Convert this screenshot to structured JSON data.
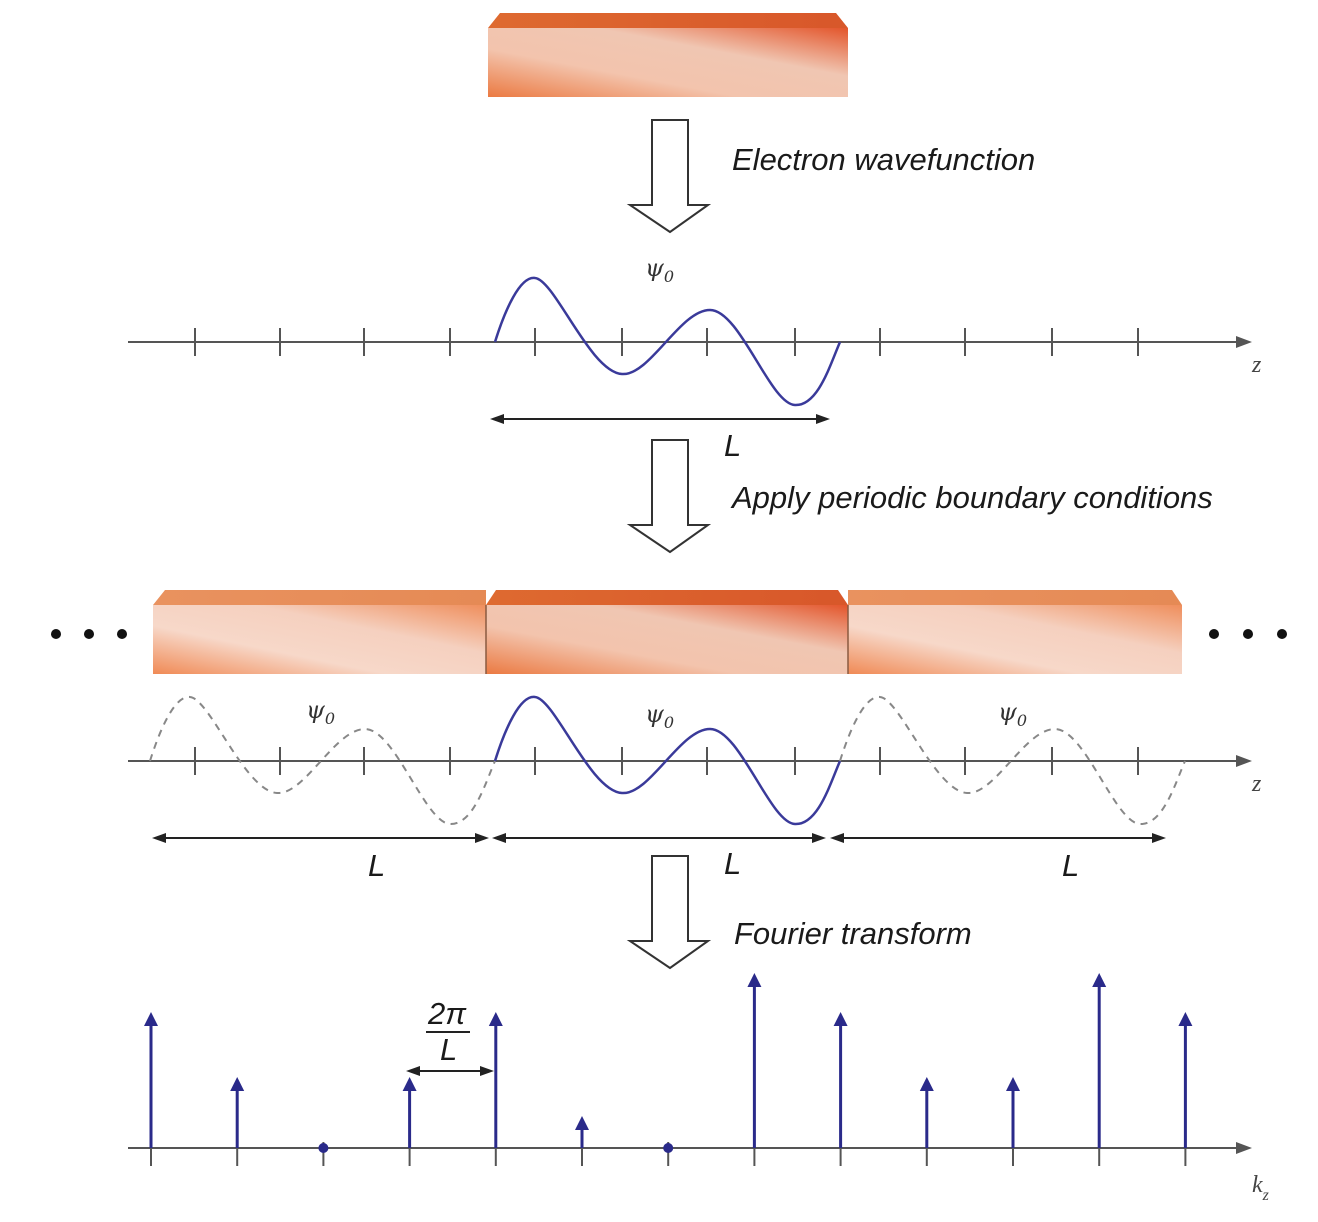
{
  "steps": {
    "wavefunction": "Electron wavefunction",
    "periodic": "Apply periodic boundary conditions",
    "fourier": "Fourier transform"
  },
  "psi_label": "ψ0",
  "length_label": "L",
  "z_axis_label": "z",
  "k_axis_label": "kz",
  "spacing_label": {
    "numerator": "2π",
    "denominator": "L"
  },
  "colors": {
    "slab_orange": "#e8773e",
    "slab_light": "#f6d0bd",
    "wave": "#3a3a9a",
    "spike": "#2a2a8a"
  },
  "spectrum_levels": [
    1,
    0.5,
    0,
    0.5,
    1,
    0.2,
    0,
    1.3,
    1,
    0.5,
    0.5,
    1.3,
    1
  ]
}
